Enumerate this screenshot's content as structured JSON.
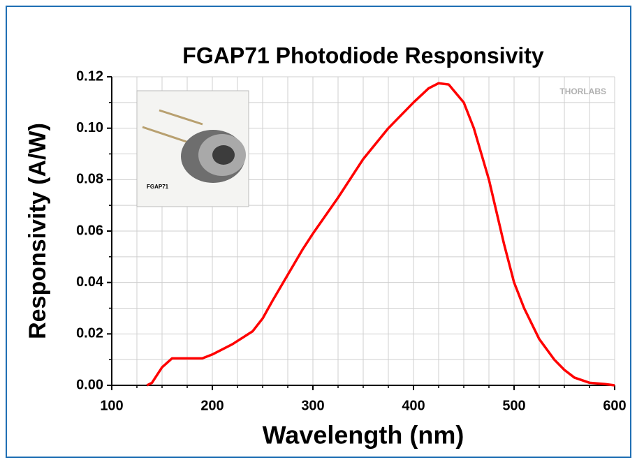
{
  "chart_data": {
    "type": "line",
    "title": "FGAP71 Photodiode Responsivity",
    "xlabel": "Wavelength (nm)",
    "ylabel": "Responsivity (A/W)",
    "inset_label": "FGAP71",
    "watermark": "THORLABS",
    "xlim": [
      100,
      600
    ],
    "ylim": [
      0,
      0.12
    ],
    "xticks": [
      100,
      200,
      300,
      400,
      500,
      600
    ],
    "yticks": [
      {
        "value": 0,
        "label": "0.00"
      },
      {
        "value": 0.02,
        "label": "0.02"
      },
      {
        "value": 0.04,
        "label": "0.04"
      },
      {
        "value": 0.06,
        "label": "0.06"
      },
      {
        "value": 0.08,
        "label": "0.08"
      },
      {
        "value": 0.1,
        "label": "0.10"
      },
      {
        "value": 0.12,
        "label": "0.12"
      }
    ],
    "xminor": [
      125,
      150,
      175,
      225,
      250,
      275,
      325,
      350,
      375,
      425,
      450,
      475,
      525,
      550,
      575
    ],
    "yminor": [
      0.01,
      0.03,
      0.05,
      0.07,
      0.09,
      0.11
    ],
    "grid": true,
    "series": [
      {
        "color": "#ff0000",
        "x": [
          135,
          140,
          150,
          160,
          170,
          190,
          200,
          220,
          240,
          250,
          260,
          275,
          290,
          300,
          325,
          350,
          375,
          400,
          415,
          425,
          435,
          450,
          460,
          475,
          490,
          500,
          510,
          525,
          540,
          550,
          560,
          575,
          590,
          600
        ],
        "values": [
          0,
          0.001,
          0.007,
          0.0105,
          0.0105,
          0.0105,
          0.012,
          0.016,
          0.021,
          0.026,
          0.033,
          0.043,
          0.053,
          0.059,
          0.073,
          0.088,
          0.1,
          0.11,
          0.1155,
          0.1175,
          0.117,
          0.11,
          0.1,
          0.08,
          0.055,
          0.04,
          0.03,
          0.018,
          0.01,
          0.006,
          0.003,
          0.001,
          0.0005,
          0
        ]
      }
    ]
  }
}
